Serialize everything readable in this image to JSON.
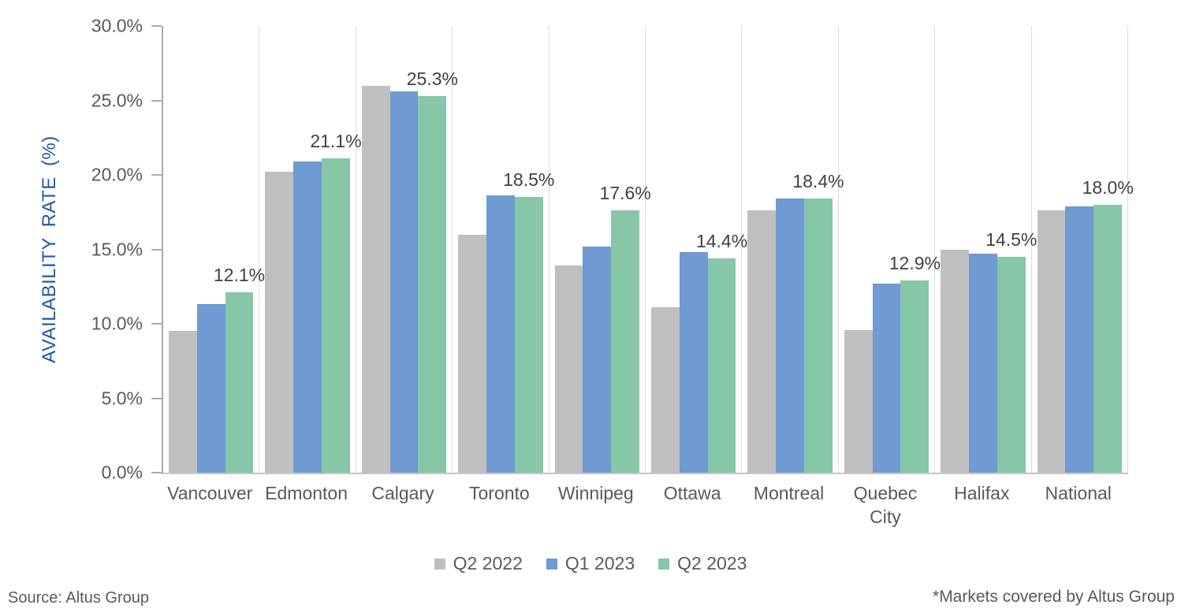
{
  "chart_data": {
    "type": "bar",
    "title": "",
    "ylabel": "AVAILABILITY RATE (%)",
    "xlabel": "",
    "ylim": [
      0,
      30
    ],
    "ytick_step": 5,
    "ytick_labels": [
      "30.0%",
      "25.0%",
      "20.0%",
      "15.0%",
      "10.0%",
      "5.0%",
      "0.0%"
    ],
    "grid": "vertical-only",
    "legend_position": "bottom",
    "categories": [
      "Vancouver",
      "Edmonton",
      "Calgary",
      "Toronto",
      "Winnipeg",
      "Ottawa",
      "Montreal",
      "Quebec City",
      "Halifax",
      "National"
    ],
    "series": [
      {
        "name": "Q2 2022",
        "color": "#BFBFBF",
        "values": [
          9.5,
          20.2,
          26.0,
          16.0,
          13.9,
          11.1,
          17.6,
          9.6,
          15.0,
          17.6
        ]
      },
      {
        "name": "Q1 2023",
        "color": "#6F9AD2",
        "values": [
          11.3,
          20.9,
          25.6,
          18.6,
          15.2,
          14.8,
          18.4,
          12.7,
          14.7,
          17.9
        ]
      },
      {
        "name": "Q2 2023",
        "color": "#87C6A7",
        "values": [
          12.1,
          21.1,
          25.3,
          18.5,
          17.6,
          14.4,
          18.4,
          12.9,
          14.5,
          18.0
        ]
      }
    ],
    "data_labels": {
      "series": "Q2 2023",
      "values": [
        "12.1%",
        "21.1%",
        "25.3%",
        "18.5%",
        "17.6%",
        "14.4%",
        "18.4%",
        "12.9%",
        "14.5%",
        "18.0%"
      ]
    },
    "axis_colors": {
      "ylabel_color": "#1F5AA8",
      "tick_color": "#595959",
      "data_label_color": "#404040",
      "gridline_color": "#DCDCDC"
    }
  },
  "footer": {
    "source": "Source: Altus Group",
    "note": "*Markets covered by Altus Group"
  }
}
